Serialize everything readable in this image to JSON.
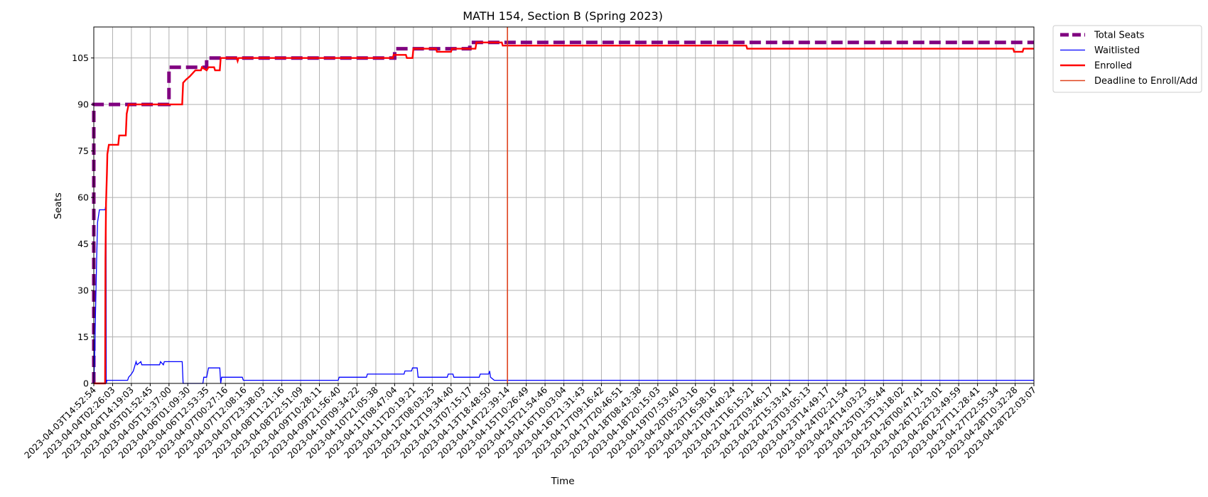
{
  "chart_data": {
    "type": "line",
    "title": "MATH 154, Section B (Spring 2023)",
    "xlabel": "Time",
    "ylabel": "Seats",
    "ylim": [
      0,
      115
    ],
    "yticks": [
      0,
      15,
      30,
      45,
      60,
      75,
      90,
      105
    ],
    "xlim": [
      0,
      50
    ],
    "grid": true,
    "legend_position": "outside-top-right",
    "x_tick_labels": [
      "2023-04-03T14:52:54",
      "2023-04-04T02:26:03",
      "2023-04-04T14:19:03",
      "2023-04-05T01:52:45",
      "2023-04-05T13:37:00",
      "2023-04-06T01:09:30",
      "2023-04-06T12:53:35",
      "2023-04-07T00:27:16",
      "2023-04-07T12:08:16",
      "2023-04-07T23:38:03",
      "2023-04-08T11:21:16",
      "2023-04-08T22:51:09",
      "2023-04-09T10:28:11",
      "2023-04-09T21:56:40",
      "2023-04-10T09:34:22",
      "2023-04-10T21:05:38",
      "2023-04-11T08:47:04",
      "2023-04-11T20:19:21",
      "2023-04-12T08:03:25",
      "2023-04-12T19:34:40",
      "2023-04-13T07:15:17",
      "2023-04-13T18:48:50",
      "2023-04-14T22:39:14",
      "2023-04-15T10:26:49",
      "2023-04-15T21:54:46",
      "2023-04-16T10:03:04",
      "2023-04-16T21:31:43",
      "2023-04-17T09:16:42",
      "2023-04-17T20:46:51",
      "2023-04-18T08:43:38",
      "2023-04-18T20:15:03",
      "2023-04-19T07:53:40",
      "2023-04-20T05:23:16",
      "2023-04-20T16:58:16",
      "2023-04-21T04:40:24",
      "2023-04-21T16:15:21",
      "2023-04-22T03:46:17",
      "2023-04-22T15:33:41",
      "2023-04-23T03:05:13",
      "2023-04-23T14:49:17",
      "2023-04-24T02:21:54",
      "2023-04-24T14:03:23",
      "2023-04-25T01:35:44",
      "2023-04-25T13:18:02",
      "2023-04-26T00:47:41",
      "2023-04-26T12:23:01",
      "2023-04-26T23:49:59",
      "2023-04-27T11:28:41",
      "2023-04-27T22:55:34",
      "2023-04-28T10:32:28",
      "2023-04-28T22:03:07"
    ],
    "deadline": {
      "name": "Deadline to Enroll/Add",
      "x": 22.0,
      "color": "#e0431e"
    },
    "series": [
      {
        "name": "Total Seats",
        "color": "#800080",
        "style": "dashed",
        "points": [
          [
            0,
            0
          ],
          [
            0,
            90
          ],
          [
            4,
            90
          ],
          [
            4,
            102
          ],
          [
            6,
            102
          ],
          [
            6,
            105
          ],
          [
            16,
            105
          ],
          [
            16,
            108
          ],
          [
            20,
            108
          ],
          [
            20,
            110
          ],
          [
            50,
            110
          ]
        ]
      },
      {
        "name": "Waitlisted",
        "color": "#0000ff",
        "style": "solid",
        "points": [
          [
            0,
            0
          ],
          [
            0.05,
            10
          ],
          [
            0.1,
            25
          ],
          [
            0.15,
            40
          ],
          [
            0.2,
            52
          ],
          [
            0.3,
            56
          ],
          [
            0.6,
            56
          ],
          [
            0.65,
            58
          ],
          [
            0.66,
            0
          ],
          [
            0.7,
            1
          ],
          [
            1.8,
            1
          ],
          [
            1.85,
            2
          ],
          [
            2.0,
            3
          ],
          [
            2.1,
            4
          ],
          [
            2.2,
            6
          ],
          [
            2.25,
            7
          ],
          [
            2.3,
            6
          ],
          [
            2.5,
            7
          ],
          [
            2.55,
            6
          ],
          [
            3.5,
            6
          ],
          [
            3.55,
            7
          ],
          [
            3.7,
            6
          ],
          [
            3.75,
            7
          ],
          [
            4.7,
            7
          ],
          [
            4.75,
            0
          ],
          [
            5.8,
            0
          ],
          [
            5.85,
            2
          ],
          [
            6.0,
            2
          ],
          [
            6.1,
            5
          ],
          [
            6.7,
            5
          ],
          [
            6.75,
            0
          ],
          [
            6.8,
            2
          ],
          [
            7.9,
            2
          ],
          [
            7.95,
            1
          ],
          [
            13.0,
            1
          ],
          [
            13.05,
            2
          ],
          [
            14.5,
            2
          ],
          [
            14.55,
            3
          ],
          [
            16.5,
            3
          ],
          [
            16.55,
            4
          ],
          [
            16.9,
            4
          ],
          [
            16.95,
            5
          ],
          [
            17.2,
            5
          ],
          [
            17.25,
            2
          ],
          [
            18.8,
            2
          ],
          [
            18.85,
            3
          ],
          [
            19.1,
            3
          ],
          [
            19.15,
            2
          ],
          [
            20.5,
            2
          ],
          [
            20.55,
            3
          ],
          [
            21.0,
            3
          ],
          [
            21.05,
            4
          ],
          [
            21.1,
            2
          ],
          [
            21.3,
            1
          ],
          [
            50,
            1
          ]
        ]
      },
      {
        "name": "Enrolled",
        "color": "#ff0000",
        "style": "solid",
        "points": [
          [
            0,
            0
          ],
          [
            0.6,
            0
          ],
          [
            0.62,
            40
          ],
          [
            0.65,
            58
          ],
          [
            0.7,
            68
          ],
          [
            0.72,
            74
          ],
          [
            0.8,
            77
          ],
          [
            1.3,
            77
          ],
          [
            1.35,
            80
          ],
          [
            1.7,
            80
          ],
          [
            1.75,
            87
          ],
          [
            1.85,
            90
          ],
          [
            4.7,
            90
          ],
          [
            4.75,
            97
          ],
          [
            4.9,
            98
          ],
          [
            5.1,
            99
          ],
          [
            5.4,
            101
          ],
          [
            5.7,
            101
          ],
          [
            5.75,
            102
          ],
          [
            6.0,
            101
          ],
          [
            6.1,
            102
          ],
          [
            6.4,
            102
          ],
          [
            6.45,
            101
          ],
          [
            6.7,
            101
          ],
          [
            6.75,
            105
          ],
          [
            7.6,
            105
          ],
          [
            7.65,
            104
          ],
          [
            7.7,
            105
          ],
          [
            15.9,
            105
          ],
          [
            15.95,
            106
          ],
          [
            16.6,
            106
          ],
          [
            16.65,
            105
          ],
          [
            16.95,
            105
          ],
          [
            17.0,
            108
          ],
          [
            18.2,
            108
          ],
          [
            18.25,
            107
          ],
          [
            19.0,
            107
          ],
          [
            19.05,
            108
          ],
          [
            20.3,
            108
          ],
          [
            20.35,
            110
          ],
          [
            21.7,
            110
          ],
          [
            21.75,
            109
          ],
          [
            34.7,
            109
          ],
          [
            34.75,
            108
          ],
          [
            48.9,
            108
          ],
          [
            48.95,
            107
          ],
          [
            49.4,
            107
          ],
          [
            49.45,
            108
          ],
          [
            50,
            108
          ]
        ]
      }
    ]
  }
}
